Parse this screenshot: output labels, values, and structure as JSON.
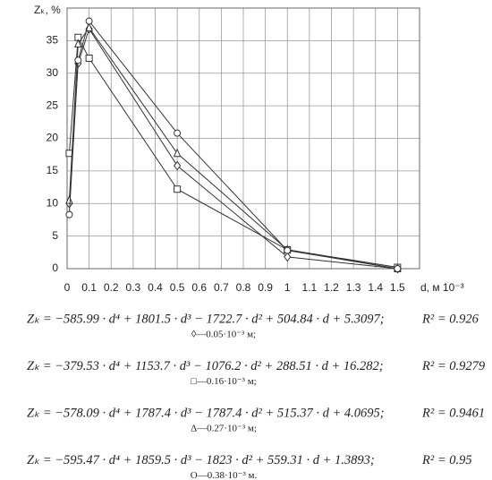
{
  "chart_data": {
    "type": "line",
    "ylabel": "Zₖ, %",
    "xlabel": "d, м 10⁻³",
    "x": [
      0.01,
      0.05,
      0.1,
      0.5,
      1.0,
      1.5
    ],
    "xlim": [
      0,
      1.6
    ],
    "xticks": [
      0,
      0.1,
      0.2,
      0.3,
      0.4,
      0.5,
      0.6,
      0.7,
      0.8,
      0.9,
      1,
      1.1,
      1.2,
      1.3,
      1.4,
      1.5
    ],
    "ylim": [
      0,
      40
    ],
    "yticks": [
      0,
      5,
      10,
      15,
      20,
      25,
      30,
      35
    ],
    "grid": true,
    "series": [
      {
        "name": "◊—0.05·10⁻³ м;",
        "marker": "diamond",
        "color": "#333",
        "values": [
          10,
          31.5,
          36.8,
          15.8,
          1.8,
          0
        ],
        "equation": "Zₖ = −585.99 · d⁴ + 1801.5 · d³ − 1722.7 · d² + 504.84 · d + 5.3097;",
        "r2": "R² = 0.926"
      },
      {
        "name": "□—0.16·10⁻³ м;",
        "marker": "square",
        "color": "#333",
        "values": [
          17.7,
          35.5,
          32.3,
          12.2,
          2.9,
          0.2
        ],
        "equation": "Zₖ = −379.53 · d⁴ + 1153.7 · d³ − 1076.2 · d² + 288.51 · d + 16.282;",
        "r2": "R² = 0.9279"
      },
      {
        "name": "Δ—0.27·10⁻³ м;",
        "marker": "triangle",
        "color": "#333",
        "values": [
          10.5,
          34.5,
          37,
          17.7,
          2.9,
          0
        ],
        "equation": "Zₖ = −578.09 · d⁴ + 1787.4 · d³ − 1787.4 · d² + 515.37 · d + 4.0695;",
        "r2": "R² = 0.9461"
      },
      {
        "name": "O—0.38·10⁻³ м.",
        "marker": "circle",
        "color": "#333",
        "values": [
          8.3,
          32,
          38,
          20.8,
          2.8,
          0
        ],
        "equation": "Zₖ = −595.47 · d⁴ + 1859.5 · d³ − 1823 · d² + 559.31 · d + 1.3893;",
        "r2": "R² = 0.95"
      }
    ]
  }
}
